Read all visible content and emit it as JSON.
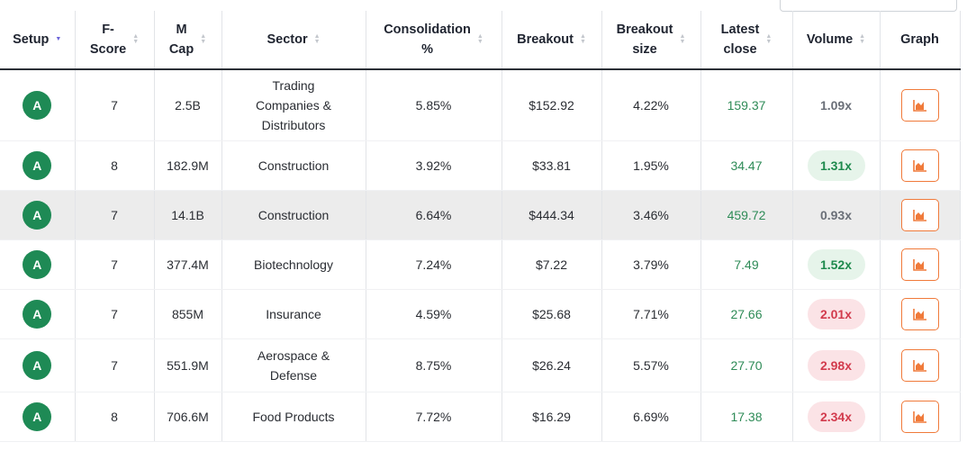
{
  "columns": {
    "setup": "Setup",
    "fscore_1": "F-",
    "fscore_2": "Score",
    "mcap_1": "M",
    "mcap_2": "Cap",
    "sector": "Sector",
    "consolidation_1": "Consolidation",
    "consolidation_2": "%",
    "breakout": "Breakout",
    "breakout_size_1": "Breakout",
    "breakout_size_2": "size",
    "latest_close_1": "Latest",
    "latest_close_2": "close",
    "volume": "Volume",
    "graph": "Graph"
  },
  "rows": [
    {
      "setup": "A",
      "fscore": "7",
      "mcap": "2.5B",
      "sector_lines": [
        "Trading",
        "Companies &",
        "Distributors"
      ],
      "consolidation": "5.85%",
      "breakout": "$152.92",
      "breakout_size": "4.22%",
      "latest_close": "159.37",
      "volume": "1.09x"
    },
    {
      "setup": "A",
      "fscore": "8",
      "mcap": "182.9M",
      "sector_lines": [
        "Construction"
      ],
      "consolidation": "3.92%",
      "breakout": "$33.81",
      "breakout_size": "1.95%",
      "latest_close": "34.47",
      "volume": "1.31x"
    },
    {
      "setup": "A",
      "fscore": "7",
      "mcap": "14.1B",
      "sector_lines": [
        "Construction"
      ],
      "consolidation": "6.64%",
      "breakout": "$444.34",
      "breakout_size": "3.46%",
      "latest_close": "459.72",
      "volume": "0.93x"
    },
    {
      "setup": "A",
      "fscore": "7",
      "mcap": "377.4M",
      "sector_lines": [
        "Biotechnology"
      ],
      "consolidation": "7.24%",
      "breakout": "$7.22",
      "breakout_size": "3.79%",
      "latest_close": "7.49",
      "volume": "1.52x"
    },
    {
      "setup": "A",
      "fscore": "7",
      "mcap": "855M",
      "sector_lines": [
        "Insurance"
      ],
      "consolidation": "4.59%",
      "breakout": "$25.68",
      "breakout_size": "7.71%",
      "latest_close": "27.66",
      "volume": "2.01x"
    },
    {
      "setup": "A",
      "fscore": "7",
      "mcap": "551.9M",
      "sector_lines": [
        "Aerospace &",
        "Defense"
      ],
      "consolidation": "8.75%",
      "breakout": "$26.24",
      "breakout_size": "5.57%",
      "latest_close": "27.70",
      "volume": "2.98x"
    },
    {
      "setup": "A",
      "fscore": "8",
      "mcap": "706.6M",
      "sector_lines": [
        "Food Products"
      ],
      "consolidation": "7.72%",
      "breakout": "$16.29",
      "breakout_size": "6.69%",
      "latest_close": "17.38",
      "volume": "2.34x"
    }
  ],
  "icons": {
    "graph": "bar-chart-icon",
    "sort": "sort-arrows-icon"
  },
  "colors": {
    "grade": "#1e8a55",
    "close": "#2e8b57",
    "graph_border": "#f07a3a",
    "vol_up": "#1e8a4d",
    "vol_hot": "#d23b4d"
  }
}
